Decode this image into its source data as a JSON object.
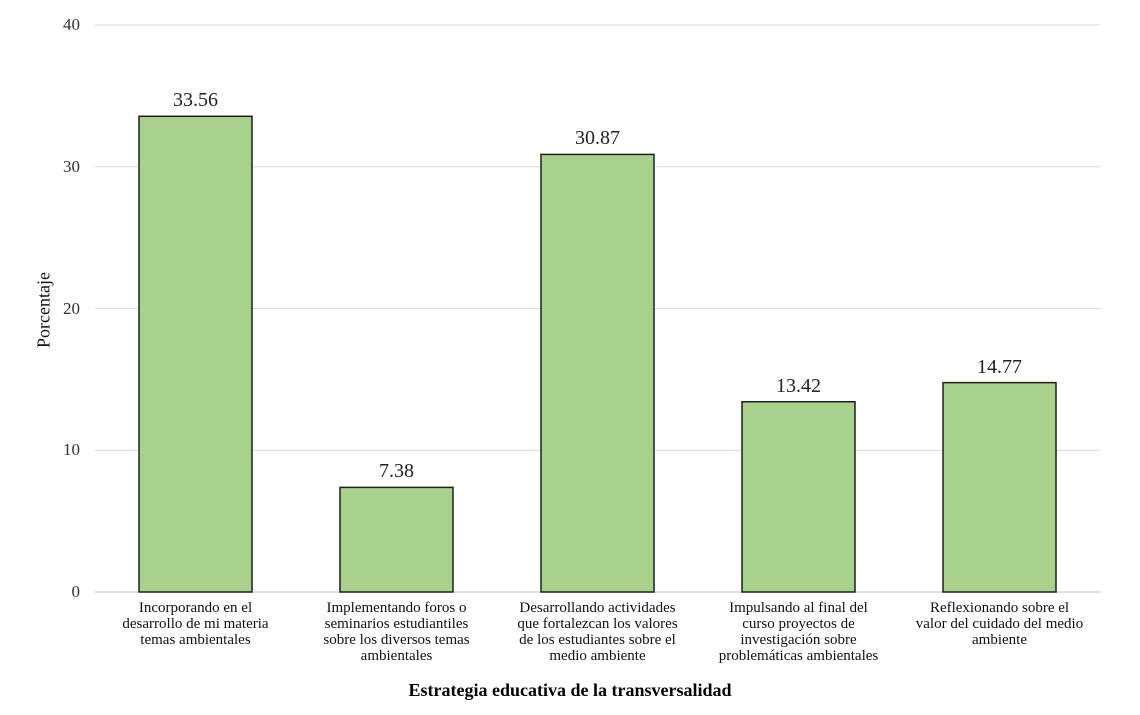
{
  "chart_data": {
    "type": "bar",
    "title": "",
    "xlabel": "Estrategia educativa de la transversalidad",
    "ylabel": "Porcentaje",
    "ylim": [
      0,
      40
    ],
    "yticks": [
      "0",
      "10",
      "20",
      "30",
      "40"
    ],
    "categories": [
      [
        "Incorporando en el",
        "desarrollo de mi materia",
        "temas ambientales"
      ],
      [
        "Implementando foros o",
        "seminarios estudiantiles",
        "sobre los diversos temas",
        "ambientales"
      ],
      [
        "Desarrollando actividades",
        "que fortalezcan los valores",
        "de los estudiantes sobre el",
        "medio ambiente"
      ],
      [
        "Impulsando al final del",
        "curso proyectos de",
        "investigación sobre",
        "problemáticas ambientales"
      ],
      [
        "Reflexionando sobre el",
        "valor del cuidado del medio",
        "ambiente"
      ]
    ],
    "values": [
      33.56,
      7.38,
      30.87,
      13.42,
      14.77
    ],
    "value_labels": [
      "33.56",
      "7.38",
      "30.87",
      "13.42",
      "14.77"
    ],
    "grid": true,
    "bar_color": "#a9d18e",
    "bar_edge_color": "#1f1f1f",
    "grid_color": "#d9d9d9"
  }
}
